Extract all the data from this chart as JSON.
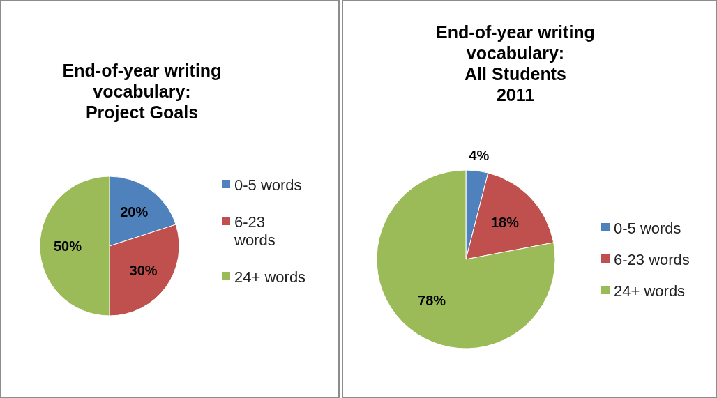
{
  "chart_data": [
    {
      "type": "pie",
      "title": "End-of-year writing\nvocabulary:\nProject Goals",
      "categories": [
        "0-5 words",
        "6-23 words",
        "24+ words"
      ],
      "values": [
        20,
        30,
        50
      ],
      "value_labels": [
        "20%",
        "30%",
        "50%"
      ],
      "colors": [
        "#4f81bd",
        "#c0504d",
        "#9bbb59"
      ],
      "legend": "right"
    },
    {
      "type": "pie",
      "title": "End-of-year writing\nvocabulary:\nAll Students\n2011",
      "categories": [
        "0-5 words",
        "6-23 words",
        "24+ words"
      ],
      "values": [
        4,
        18,
        78
      ],
      "value_labels": [
        "4%",
        "18%",
        "78%"
      ],
      "colors": [
        "#4f81bd",
        "#c0504d",
        "#9bbb59"
      ],
      "legend": "right"
    }
  ]
}
